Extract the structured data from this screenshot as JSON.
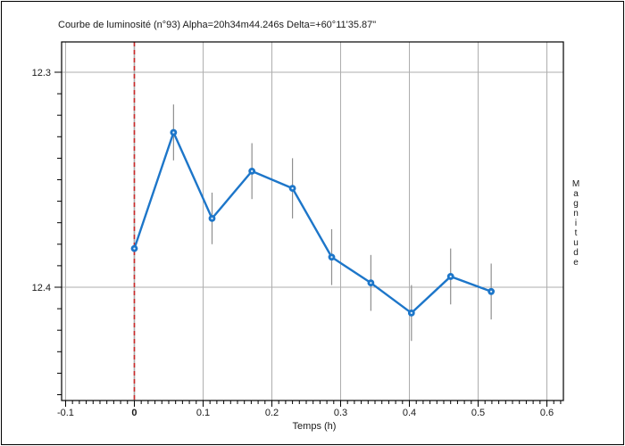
{
  "window": {
    "bg_color": "#ffffff",
    "border_color": "#000000"
  },
  "chart_data": {
    "type": "line",
    "title": "Courbe de luminosité (n°93) Alpha=20h34m44.246s Delta=+60°11'35.87\"",
    "xlabel": "Temps (h)",
    "ylabel": "Magnitude",
    "x_ticks": [
      -0.1,
      0,
      0.1,
      0.2,
      0.3,
      0.4,
      0.5,
      0.6
    ],
    "x_tick_labels": [
      "-0.1",
      "0",
      "0.1",
      "0.2",
      "0.3",
      "0.4",
      "0.5",
      "0.6"
    ],
    "y_ticks": [
      12.3,
      12.4
    ],
    "y_tick_labels": [
      "12.3",
      "12.4"
    ],
    "x_minor_step": 0.01,
    "y_minor_step": 0.01,
    "xlim": [
      -0.1058,
      0.624
    ],
    "ylim": [
      12.2859,
      12.4527
    ],
    "y_axis_inverted": true,
    "grid": true,
    "emphasized_x_tick": "0",
    "event_marker_x": 0,
    "series": [
      {
        "name": "light-curve",
        "marker": "circle",
        "color": "#1d76c9",
        "x": [
          0.0,
          0.057,
          0.113,
          0.171,
          0.23,
          0.287,
          0.344,
          0.403,
          0.46,
          0.519
        ],
        "y": [
          12.382,
          12.328,
          12.368,
          12.346,
          12.354,
          12.386,
          12.398,
          12.412,
          12.395,
          12.402
        ],
        "yerr": [
          0.012,
          0.013,
          0.012,
          0.013,
          0.014,
          0.013,
          0.013,
          0.013,
          0.013,
          0.013
        ]
      }
    ],
    "colors": {
      "grid": "#aeaeae",
      "error_bar": "#8f8f8f",
      "event_line_red": "#cc2a2a",
      "event_line_base": "#ababab",
      "axis": "#000000",
      "text": "#1a1a1a"
    }
  }
}
